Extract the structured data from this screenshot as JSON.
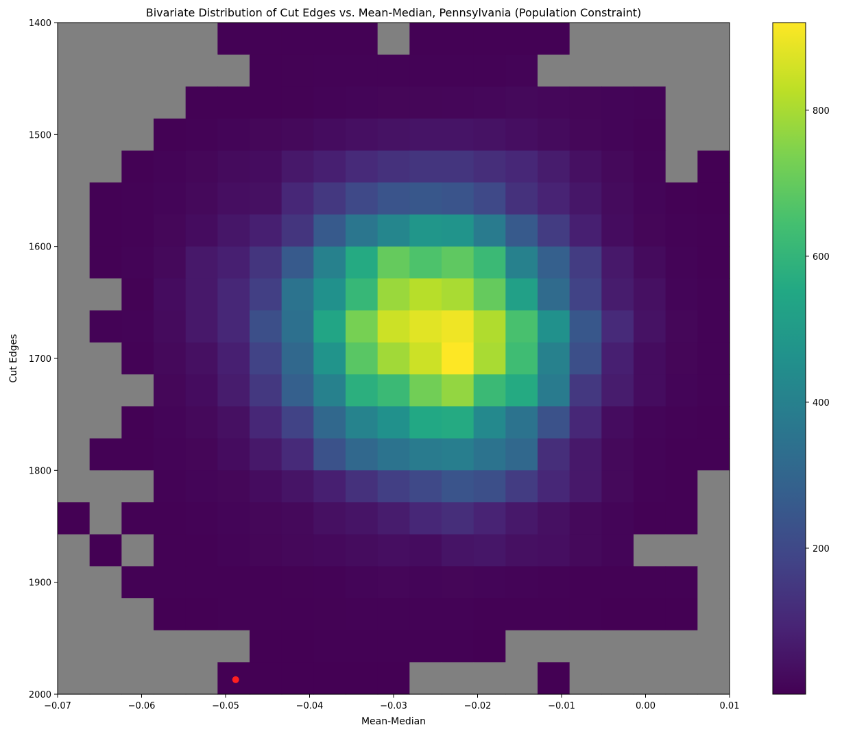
{
  "chart_data": {
    "type": "heatmap",
    "title": "Bivariate Distribution of Cut Edges vs. Mean-Median, Pennsylvania (Population Constraint)",
    "xlabel": "Mean-Median",
    "ylabel": "Cut Edges",
    "xlim": [
      -0.07,
      0.01
    ],
    "ylim": [
      2000,
      1400
    ],
    "y_inverted": true,
    "x_ticks": [
      -0.07,
      -0.06,
      -0.05,
      -0.04,
      -0.03,
      -0.02,
      -0.01,
      0.0,
      0.01
    ],
    "x_tick_labels": [
      "−0.07",
      "−0.06",
      "−0.05",
      "−0.04",
      "−0.03",
      "−0.02",
      "−0.01",
      "0.00",
      "0.01"
    ],
    "y_ticks": [
      1400,
      1500,
      1600,
      1700,
      1800,
      1900,
      2000
    ],
    "y_tick_labels": [
      "1400",
      "1500",
      "1600",
      "1700",
      "1800",
      "1900",
      "2000"
    ],
    "bins_x": 21,
    "bins_y": 21,
    "empty_bin_color": "#808080",
    "colormap": "viridis",
    "colorbar": {
      "range": [
        0,
        920
      ],
      "ticks": [
        200,
        400,
        600,
        800
      ],
      "tick_labels": [
        "200",
        "400",
        "600",
        "800"
      ]
    },
    "counts": [
      [
        0,
        0,
        0,
        0,
        0,
        3,
        2,
        2,
        2,
        2,
        0,
        3,
        3,
        3,
        2,
        2,
        0,
        0,
        0,
        0,
        0
      ],
      [
        0,
        0,
        0,
        0,
        0,
        0,
        3,
        4,
        5,
        5,
        5,
        5,
        5,
        6,
        8,
        0,
        0,
        0,
        0,
        0,
        0
      ],
      [
        0,
        0,
        0,
        0,
        2,
        3,
        3,
        4,
        8,
        10,
        12,
        12,
        14,
        16,
        20,
        16,
        12,
        10,
        7,
        0,
        0
      ],
      [
        0,
        0,
        0,
        3,
        5,
        10,
        15,
        20,
        30,
        38,
        45,
        50,
        50,
        45,
        35,
        25,
        15,
        10,
        6,
        0,
        0
      ],
      [
        0,
        0,
        3,
        8,
        15,
        25,
        30,
        60,
        80,
        110,
        130,
        140,
        140,
        120,
        100,
        70,
        40,
        20,
        8,
        0,
        1
      ],
      [
        0,
        3,
        5,
        10,
        20,
        35,
        40,
        100,
        150,
        200,
        240,
        250,
        240,
        200,
        130,
        90,
        55,
        25,
        10,
        3,
        1
      ],
      [
        0,
        3,
        5,
        15,
        30,
        55,
        80,
        140,
        260,
        360,
        420,
        480,
        470,
        380,
        260,
        160,
        80,
        30,
        12,
        5,
        2
      ],
      [
        0,
        3,
        8,
        20,
        60,
        80,
        140,
        260,
        400,
        560,
        700,
        660,
        690,
        620,
        400,
        280,
        160,
        60,
        25,
        8,
        3
      ],
      [
        0,
        0,
        4,
        30,
        60,
        100,
        170,
        350,
        460,
        610,
        780,
        820,
        800,
        700,
        520,
        320,
        180,
        70,
        40,
        10,
        5
      ],
      [
        0,
        5,
        8,
        25,
        60,
        100,
        220,
        340,
        540,
        730,
        850,
        880,
        900,
        810,
        650,
        460,
        250,
        110,
        45,
        15,
        6
      ],
      [
        0,
        0,
        6,
        20,
        40,
        80,
        180,
        310,
        470,
        680,
        790,
        850,
        920,
        800,
        630,
        400,
        220,
        80,
        30,
        12,
        5
      ],
      [
        0,
        0,
        0,
        15,
        30,
        70,
        150,
        280,
        400,
        580,
        620,
        720,
        770,
        620,
        560,
        380,
        150,
        70,
        30,
        10,
        6
      ],
      [
        0,
        0,
        3,
        10,
        20,
        40,
        100,
        180,
        310,
        410,
        460,
        550,
        560,
        430,
        350,
        230,
        100,
        30,
        10,
        5,
        3
      ],
      [
        0,
        3,
        3,
        8,
        12,
        30,
        60,
        110,
        230,
        310,
        350,
        380,
        390,
        350,
        310,
        120,
        60,
        20,
        8,
        3,
        2
      ],
      [
        0,
        0,
        0,
        5,
        10,
        15,
        30,
        50,
        80,
        130,
        170,
        200,
        240,
        220,
        160,
        100,
        60,
        20,
        6,
        3,
        0
      ],
      [
        1,
        0,
        2,
        3,
        5,
        10,
        15,
        20,
        40,
        50,
        70,
        100,
        120,
        90,
        60,
        40,
        20,
        10,
        3,
        2,
        0
      ],
      [
        0,
        1,
        0,
        2,
        3,
        7,
        12,
        18,
        22,
        28,
        35,
        30,
        50,
        55,
        40,
        35,
        20,
        10,
        0,
        0,
        0
      ],
      [
        0,
        0,
        2,
        2,
        3,
        3,
        3,
        4,
        5,
        10,
        14,
        10,
        12,
        10,
        7,
        5,
        3,
        2,
        2,
        2,
        0
      ],
      [
        0,
        0,
        0,
        1,
        1,
        2,
        2,
        3,
        4,
        5,
        6,
        5,
        5,
        3,
        3,
        2,
        2,
        1,
        1,
        1,
        0
      ],
      [
        0,
        0,
        0,
        0,
        0,
        0,
        1,
        1,
        2,
        2,
        2,
        2,
        2,
        1,
        0,
        0,
        0,
        0,
        0,
        0,
        0
      ],
      [
        0,
        0,
        0,
        0,
        0,
        1,
        1,
        1,
        1,
        1,
        1,
        0,
        0,
        0,
        0,
        1,
        0,
        0,
        0,
        0,
        0
      ]
    ],
    "marker": {
      "x": -0.0488,
      "y": 1987,
      "color": "#ff2020"
    }
  }
}
